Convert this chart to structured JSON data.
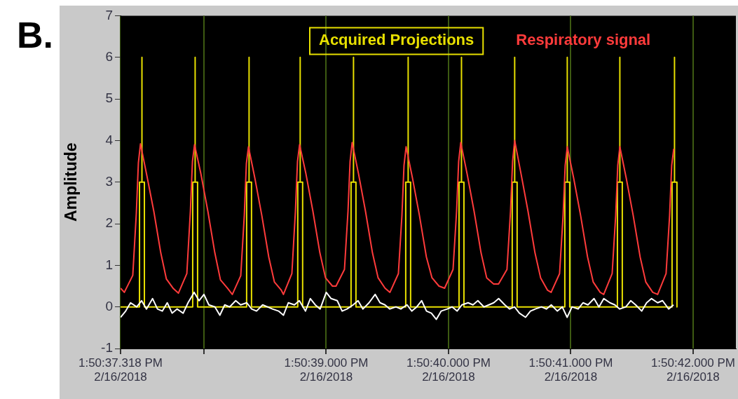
{
  "chart_data": {
    "type": "line",
    "title": "B.",
    "ylabel": "Amplitude",
    "xlim": [
      "2018-02-16T13:50:37.318",
      "2018-02-16T13:50:42.350"
    ],
    "ylim": [
      -1,
      7
    ],
    "xticks": [
      {
        "value": "2018-02-16T13:50:37.318",
        "label": "1:50:37.318 PM\n2/16/2018"
      },
      {
        "value": "2018-02-16T13:50:38.000",
        "label": null
      },
      {
        "value": "2018-02-16T13:50:39.000",
        "label": "1:50:39.000 PM\n2/16/2018"
      },
      {
        "value": "2018-02-16T13:50:40.000",
        "label": "1:50:40.000 PM\n2/16/2018"
      },
      {
        "value": "2018-02-16T13:50:41.000",
        "label": "1:50:41.000 PM\n2/16/2018"
      },
      {
        "value": "2018-02-16T13:50:42.000",
        "label": "1:50:42.000 PM\n2/16/2018"
      }
    ],
    "yticks": [
      -1,
      0,
      1,
      2,
      3,
      4,
      5,
      6,
      7
    ],
    "grid": "x",
    "legend": "top",
    "marker": "none",
    "line_style": "solid",
    "series": [
      {
        "name": "Acquired Projections",
        "color": "#e8e000",
        "x": [
          "2018-02-16T13:50:37.318",
          "2018-02-16T13:50:37.473",
          "2018-02-16T13:50:37.473",
          "2018-02-16T13:50:37.493",
          "2018-02-16T13:50:37.493",
          "2018-02-16T13:50:37.493",
          "2018-02-16T13:50:37.513",
          "2018-02-16T13:50:37.513",
          "2018-02-16T13:50:37.908",
          "2018-02-16T13:50:37.908",
          "2018-02-16T13:50:37.928",
          "2018-02-16T13:50:37.928",
          "2018-02-16T13:50:37.928",
          "2018-02-16T13:50:37.948",
          "2018-02-16T13:50:37.948",
          "2018-02-16T13:50:38.349",
          "2018-02-16T13:50:38.349",
          "2018-02-16T13:50:38.369",
          "2018-02-16T13:50:38.369",
          "2018-02-16T13:50:38.369",
          "2018-02-16T13:50:38.389",
          "2018-02-16T13:50:38.389",
          "2018-02-16T13:50:38.767",
          "2018-02-16T13:50:38.767",
          "2018-02-16T13:50:38.787",
          "2018-02-16T13:50:38.787",
          "2018-02-16T13:50:38.787",
          "2018-02-16T13:50:38.807",
          "2018-02-16T13:50:38.807",
          "2018-02-16T13:50:39.203",
          "2018-02-16T13:50:39.203",
          "2018-02-16T13:50:39.223",
          "2018-02-16T13:50:39.223",
          "2018-02-16T13:50:39.223",
          "2018-02-16T13:50:39.243",
          "2018-02-16T13:50:39.243",
          "2018-02-16T13:50:39.650",
          "2018-02-16T13:50:39.650",
          "2018-02-16T13:50:39.670",
          "2018-02-16T13:50:39.670",
          "2018-02-16T13:50:39.670",
          "2018-02-16T13:50:39.690",
          "2018-02-16T13:50:39.690",
          "2018-02-16T13:50:40.086",
          "2018-02-16T13:50:40.086",
          "2018-02-16T13:50:40.106",
          "2018-02-16T13:50:40.106",
          "2018-02-16T13:50:40.106",
          "2018-02-16T13:50:40.126",
          "2018-02-16T13:50:40.126",
          "2018-02-16T13:50:40.521",
          "2018-02-16T13:50:40.521",
          "2018-02-16T13:50:40.541",
          "2018-02-16T13:50:40.541",
          "2018-02-16T13:50:40.541",
          "2018-02-16T13:50:40.561",
          "2018-02-16T13:50:40.561",
          "2018-02-16T13:50:40.951",
          "2018-02-16T13:50:40.951",
          "2018-02-16T13:50:40.971",
          "2018-02-16T13:50:40.971",
          "2018-02-16T13:50:40.971",
          "2018-02-16T13:50:40.991",
          "2018-02-16T13:50:40.991",
          "2018-02-16T13:50:41.381",
          "2018-02-16T13:50:41.381",
          "2018-02-16T13:50:41.401",
          "2018-02-16T13:50:41.401",
          "2018-02-16T13:50:41.401",
          "2018-02-16T13:50:41.421",
          "2018-02-16T13:50:41.421",
          "2018-02-16T13:50:41.828",
          "2018-02-16T13:50:41.828",
          "2018-02-16T13:50:41.848",
          "2018-02-16T13:50:41.848",
          "2018-02-16T13:50:41.848",
          "2018-02-16T13:50:41.868",
          "2018-02-16T13:50:41.868"
        ],
        "values": [
          0,
          0,
          3,
          3,
          6,
          3,
          3,
          0,
          0,
          3,
          3,
          6,
          3,
          3,
          0,
          0,
          3,
          3,
          6,
          3,
          3,
          0,
          0,
          3,
          3,
          6,
          3,
          3,
          0,
          0,
          3,
          3,
          6,
          3,
          3,
          0,
          0,
          3,
          3,
          6,
          3,
          3,
          0,
          0,
          3,
          3,
          6,
          3,
          3,
          0,
          0,
          3,
          3,
          6,
          3,
          3,
          0,
          0,
          3,
          3,
          6,
          3,
          3,
          0,
          0,
          3,
          3,
          6,
          3,
          3,
          0,
          0,
          3,
          3,
          6,
          3,
          3,
          0
        ]
      },
      {
        "name": "Respiratory signal",
        "color": "#ff3b3b",
        "x": [
          "2018-02-16T13:50:37.318",
          "2018-02-16T13:50:37.349",
          "2018-02-16T13:50:37.418",
          "2018-02-16T13:50:37.447",
          "2018-02-16T13:50:37.464",
          "2018-02-16T13:50:37.481",
          "2018-02-16T13:50:37.533",
          "2018-02-16T13:50:37.590",
          "2018-02-16T13:50:37.647",
          "2018-02-16T13:50:37.693",
          "2018-02-16T13:50:37.750",
          "2018-02-16T13:50:37.791",
          "2018-02-16T13:50:37.860",
          "2018-02-16T13:50:37.889",
          "2018-02-16T13:50:37.906",
          "2018-02-16T13:50:37.923",
          "2018-02-16T13:50:37.975",
          "2018-02-16T13:50:38.032",
          "2018-02-16T13:50:38.089",
          "2018-02-16T13:50:38.135",
          "2018-02-16T13:50:38.192",
          "2018-02-16T13:50:38.232",
          "2018-02-16T13:50:38.301",
          "2018-02-16T13:50:38.330",
          "2018-02-16T13:50:38.347",
          "2018-02-16T13:50:38.364",
          "2018-02-16T13:50:38.416",
          "2018-02-16T13:50:38.473",
          "2018-02-16T13:50:38.530",
          "2018-02-16T13:50:38.576",
          "2018-02-16T13:50:38.633",
          "2018-02-16T13:50:38.650",
          "2018-02-16T13:50:38.719",
          "2018-02-16T13:50:38.748",
          "2018-02-16T13:50:38.765",
          "2018-02-16T13:50:38.782",
          "2018-02-16T13:50:38.834",
          "2018-02-16T13:50:38.891",
          "2018-02-16T13:50:38.948",
          "2018-02-16T13:50:38.994",
          "2018-02-16T13:50:39.051",
          "2018-02-16T13:50:39.080",
          "2018-02-16T13:50:39.149",
          "2018-02-16T13:50:39.178",
          "2018-02-16T13:50:39.195",
          "2018-02-16T13:50:39.212",
          "2018-02-16T13:50:39.264",
          "2018-02-16T13:50:39.321",
          "2018-02-16T13:50:39.378",
          "2018-02-16T13:50:39.424",
          "2018-02-16T13:50:39.481",
          "2018-02-16T13:50:39.521",
          "2018-02-16T13:50:39.590",
          "2018-02-16T13:50:39.619",
          "2018-02-16T13:50:39.636",
          "2018-02-16T13:50:39.653",
          "2018-02-16T13:50:39.705",
          "2018-02-16T13:50:39.762",
          "2018-02-16T13:50:39.819",
          "2018-02-16T13:50:39.865",
          "2018-02-16T13:50:39.922",
          "2018-02-16T13:50:39.968",
          "2018-02-16T13:50:40.037",
          "2018-02-16T13:50:40.066",
          "2018-02-16T13:50:40.083",
          "2018-02-16T13:50:40.100",
          "2018-02-16T13:50:40.152",
          "2018-02-16T13:50:40.209",
          "2018-02-16T13:50:40.266",
          "2018-02-16T13:50:40.312",
          "2018-02-16T13:50:40.369",
          "2018-02-16T13:50:40.409",
          "2018-02-16T13:50:40.478",
          "2018-02-16T13:50:40.507",
          "2018-02-16T13:50:40.524",
          "2018-02-16T13:50:40.541",
          "2018-02-16T13:50:40.593",
          "2018-02-16T13:50:40.650",
          "2018-02-16T13:50:40.707",
          "2018-02-16T13:50:40.753",
          "2018-02-16T13:50:40.810",
          "2018-02-16T13:50:40.839",
          "2018-02-16T13:50:40.908",
          "2018-02-16T13:50:40.937",
          "2018-02-16T13:50:40.954",
          "2018-02-16T13:50:40.971",
          "2018-02-16T13:50:41.023",
          "2018-02-16T13:50:41.080",
          "2018-02-16T13:50:41.137",
          "2018-02-16T13:50:41.183",
          "2018-02-16T13:50:41.240",
          "2018-02-16T13:50:41.269",
          "2018-02-16T13:50:41.338",
          "2018-02-16T13:50:41.367",
          "2018-02-16T13:50:41.384",
          "2018-02-16T13:50:41.401",
          "2018-02-16T13:50:41.453",
          "2018-02-16T13:50:41.510",
          "2018-02-16T13:50:41.567",
          "2018-02-16T13:50:41.613",
          "2018-02-16T13:50:41.670",
          "2018-02-16T13:50:41.710",
          "2018-02-16T13:50:41.779",
          "2018-02-16T13:50:41.808",
          "2018-02-16T13:50:41.825",
          "2018-02-16T13:50:41.842"
        ],
        "values": [
          0.45,
          0.35,
          0.76,
          2.25,
          3.47,
          3.92,
          3.16,
          2.3,
          1.3,
          0.67,
          0.44,
          0.33,
          0.8,
          2.3,
          3.5,
          3.9,
          3.2,
          2.3,
          1.3,
          0.65,
          0.45,
          0.3,
          0.75,
          2.2,
          3.45,
          3.85,
          3.1,
          2.2,
          1.2,
          0.6,
          0.4,
          0.3,
          0.8,
          2.3,
          3.5,
          3.9,
          3.2,
          2.3,
          1.3,
          0.7,
          0.5,
          0.5,
          0.9,
          2.3,
          3.5,
          3.95,
          3.2,
          2.3,
          1.3,
          0.7,
          0.45,
          0.35,
          0.8,
          2.2,
          3.4,
          3.85,
          3.1,
          2.2,
          1.2,
          0.7,
          0.5,
          0.45,
          0.9,
          2.3,
          3.5,
          3.95,
          3.2,
          2.3,
          1.3,
          0.7,
          0.55,
          0.55,
          0.9,
          2.3,
          3.5,
          4.0,
          3.2,
          2.3,
          1.3,
          0.7,
          0.4,
          0.35,
          0.8,
          2.2,
          3.4,
          3.85,
          3.1,
          2.2,
          1.2,
          0.6,
          0.35,
          0.3,
          0.8,
          2.2,
          3.4,
          3.85,
          3.1,
          2.2,
          1.2,
          0.6,
          0.35,
          0.3,
          0.8,
          2.2,
          3.4,
          3.8
        ]
      },
      {
        "color": "#ffffff",
        "x": [
          "2018-02-16T13:50:37.318",
          "2018-02-16T13:50:37.360",
          "2018-02-16T13:50:37.400",
          "2018-02-16T13:50:37.450",
          "2018-02-16T13:50:37.490",
          "2018-02-16T13:50:37.530",
          "2018-02-16T13:50:37.580",
          "2018-02-16T13:50:37.620",
          "2018-02-16T13:50:37.660",
          "2018-02-16T13:50:37.700",
          "2018-02-16T13:50:37.740",
          "2018-02-16T13:50:37.780",
          "2018-02-16T13:50:37.830",
          "2018-02-16T13:50:37.870",
          "2018-02-16T13:50:37.920",
          "2018-02-16T13:50:37.960",
          "2018-02-16T13:50:38.000",
          "2018-02-16T13:50:38.040",
          "2018-02-16T13:50:38.090",
          "2018-02-16T13:50:38.130",
          "2018-02-16T13:50:38.170",
          "2018-02-16T13:50:38.210",
          "2018-02-16T13:50:38.260",
          "2018-02-16T13:50:38.300",
          "2018-02-16T13:50:38.350",
          "2018-02-16T13:50:38.390",
          "2018-02-16T13:50:38.430",
          "2018-02-16T13:50:38.480",
          "2018-02-16T13:50:38.520",
          "2018-02-16T13:50:38.560",
          "2018-02-16T13:50:38.610",
          "2018-02-16T13:50:38.650",
          "2018-02-16T13:50:38.690",
          "2018-02-16T13:50:38.740",
          "2018-02-16T13:50:38.780",
          "2018-02-16T13:50:38.830",
          "2018-02-16T13:50:38.870",
          "2018-02-16T13:50:38.910",
          "2018-02-16T13:50:38.950",
          "2018-02-16T13:50:39.000",
          "2018-02-16T13:50:39.040",
          "2018-02-16T13:50:39.090",
          "2018-02-16T13:50:39.130",
          "2018-02-16T13:50:39.170",
          "2018-02-16T13:50:39.220",
          "2018-02-16T13:50:39.260",
          "2018-02-16T13:50:39.300",
          "2018-02-16T13:50:39.350",
          "2018-02-16T13:50:39.400",
          "2018-02-16T13:50:39.440",
          "2018-02-16T13:50:39.480",
          "2018-02-16T13:50:39.520",
          "2018-02-16T13:50:39.570",
          "2018-02-16T13:50:39.610",
          "2018-02-16T13:50:39.660",
          "2018-02-16T13:50:39.700",
          "2018-02-16T13:50:39.740",
          "2018-02-16T13:50:39.780",
          "2018-02-16T13:50:39.820",
          "2018-02-16T13:50:39.860",
          "2018-02-16T13:50:39.900",
          "2018-02-16T13:50:39.940",
          "2018-02-16T13:50:39.990",
          "2018-02-16T13:50:40.030",
          "2018-02-16T13:50:40.070",
          "2018-02-16T13:50:40.110",
          "2018-02-16T13:50:40.160",
          "2018-02-16T13:50:40.200",
          "2018-02-16T13:50:40.240",
          "2018-02-16T13:50:40.290",
          "2018-02-16T13:50:40.330",
          "2018-02-16T13:50:40.370",
          "2018-02-16T13:50:40.410",
          "2018-02-16T13:50:40.460",
          "2018-02-16T13:50:40.500",
          "2018-02-16T13:50:40.540",
          "2018-02-16T13:50:40.580",
          "2018-02-16T13:50:40.630",
          "2018-02-16T13:50:40.670",
          "2018-02-16T13:50:40.710",
          "2018-02-16T13:50:40.760",
          "2018-02-16T13:50:40.800",
          "2018-02-16T13:50:40.840",
          "2018-02-16T13:50:40.890",
          "2018-02-16T13:50:40.930",
          "2018-02-16T13:50:40.970",
          "2018-02-16T13:50:41.010",
          "2018-02-16T13:50:41.060",
          "2018-02-16T13:50:41.100",
          "2018-02-16T13:50:41.140",
          "2018-02-16T13:50:41.190",
          "2018-02-16T13:50:41.230",
          "2018-02-16T13:50:41.270",
          "2018-02-16T13:50:41.320",
          "2018-02-16T13:50:41.360",
          "2018-02-16T13:50:41.400",
          "2018-02-16T13:50:41.450",
          "2018-02-16T13:50:41.490",
          "2018-02-16T13:50:41.530",
          "2018-02-16T13:50:41.580",
          "2018-02-16T13:50:41.620",
          "2018-02-16T13:50:41.660",
          "2018-02-16T13:50:41.710",
          "2018-02-16T13:50:41.750",
          "2018-02-16T13:50:41.800",
          "2018-02-16T13:50:41.840"
        ],
        "values": [
          -0.25,
          -0.1,
          0.1,
          0.0,
          0.15,
          -0.05,
          0.2,
          -0.05,
          -0.1,
          0.1,
          -0.15,
          -0.05,
          -0.15,
          0.1,
          0.35,
          0.15,
          0.3,
          0.05,
          0.0,
          -0.2,
          0.05,
          0.0,
          0.15,
          0.05,
          0.1,
          -0.05,
          -0.1,
          0.05,
          0.0,
          -0.05,
          -0.1,
          -0.2,
          0.1,
          0.05,
          0.15,
          -0.1,
          0.2,
          0.05,
          -0.05,
          0.35,
          0.2,
          0.15,
          -0.1,
          -0.05,
          0.05,
          0.15,
          -0.05,
          0.1,
          0.3,
          0.1,
          0.05,
          -0.05,
          0.0,
          -0.05,
          0.05,
          -0.1,
          0.0,
          0.15,
          -0.1,
          -0.15,
          -0.3,
          -0.1,
          -0.05,
          0.0,
          -0.1,
          0.05,
          0.1,
          0.05,
          0.15,
          0.0,
          0.05,
          0.1,
          0.2,
          0.05,
          -0.05,
          0.0,
          -0.15,
          -0.25,
          -0.1,
          -0.05,
          0.0,
          -0.05,
          0.05,
          -0.1,
          0.0,
          -0.25,
          0.0,
          -0.05,
          0.1,
          0.05,
          0.2,
          0.0,
          0.2,
          0.1,
          0.05,
          -0.05,
          0.0,
          0.15,
          0.05,
          -0.1,
          0.1,
          0.2,
          0.1,
          0.15,
          -0.05,
          0.05
        ]
      }
    ]
  }
}
